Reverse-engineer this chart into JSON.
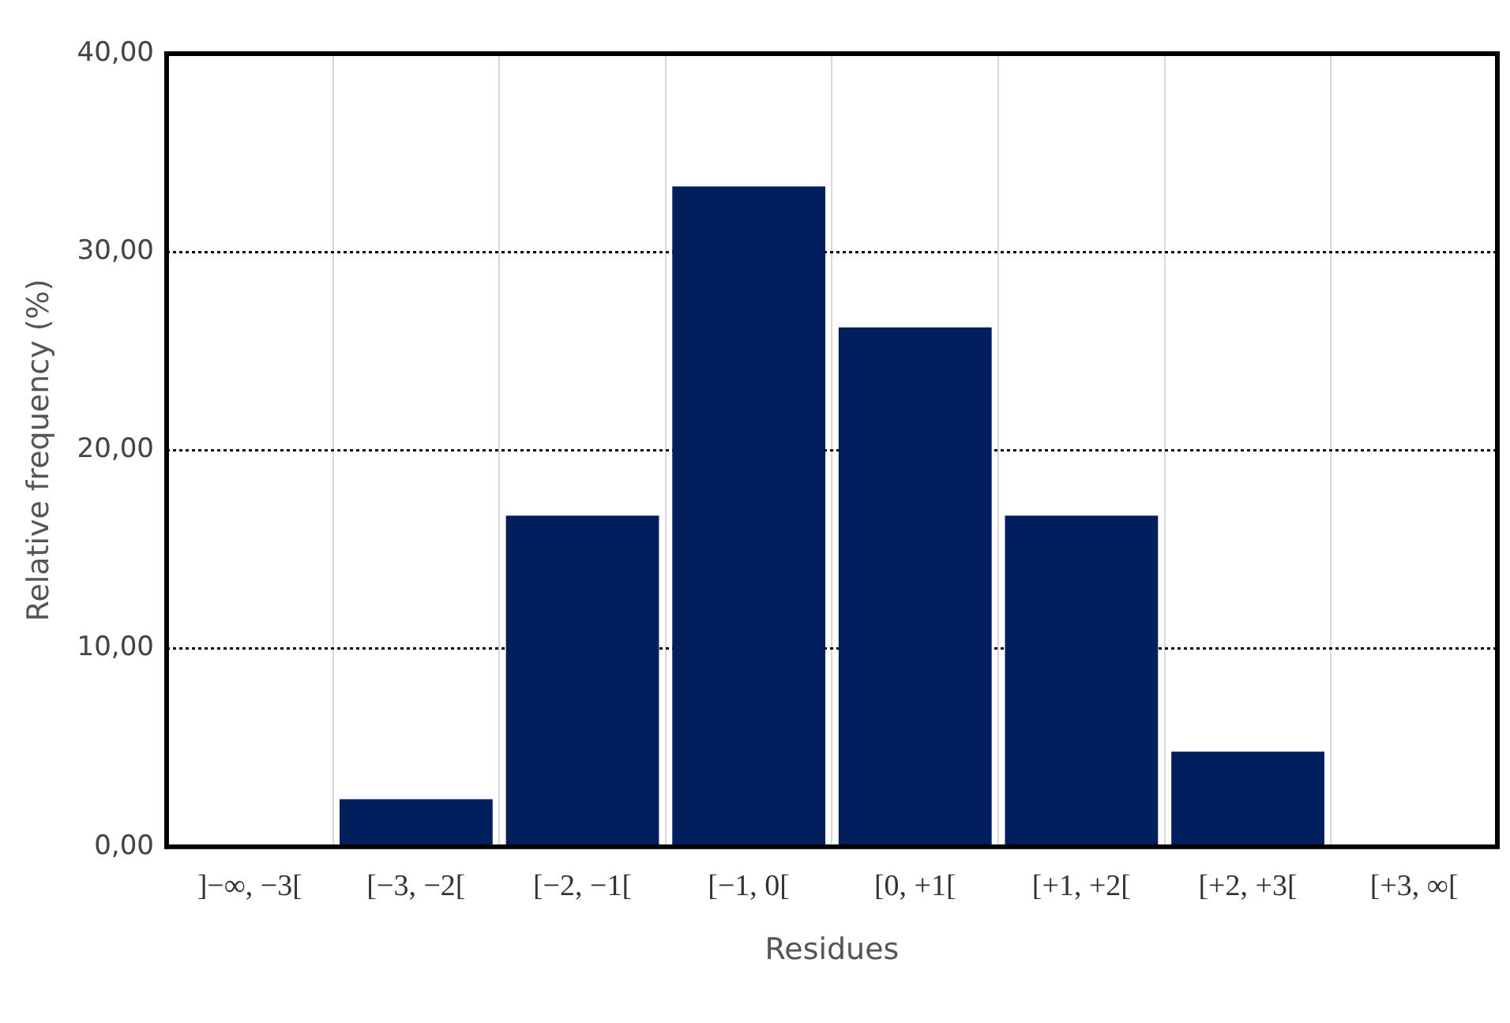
{
  "chart_data": {
    "type": "bar",
    "xlabel": "Residues",
    "ylabel": "Relative frequency (%)",
    "categories": [
      "]−∞, −3[",
      "[−3, −2[",
      "[−2, −1[",
      "[−1, 0[",
      "[0, +1[",
      "[+1, +2[",
      "[+2, +3[",
      "[+3, ∞["
    ],
    "values": [
      0,
      2.4,
      16.7,
      33.3,
      26.2,
      16.7,
      4.8,
      0
    ],
    "color": "#001f5c",
    "ylim": [
      0,
      40
    ],
    "yticks": [
      {
        "value": 0,
        "label": "0,00"
      },
      {
        "value": 10,
        "label": "10,00"
      },
      {
        "value": 20,
        "label": "20,00"
      },
      {
        "value": 30,
        "label": "30,00"
      },
      {
        "value": 40,
        "label": "40,00"
      }
    ],
    "grid": true,
    "legend": false
  }
}
